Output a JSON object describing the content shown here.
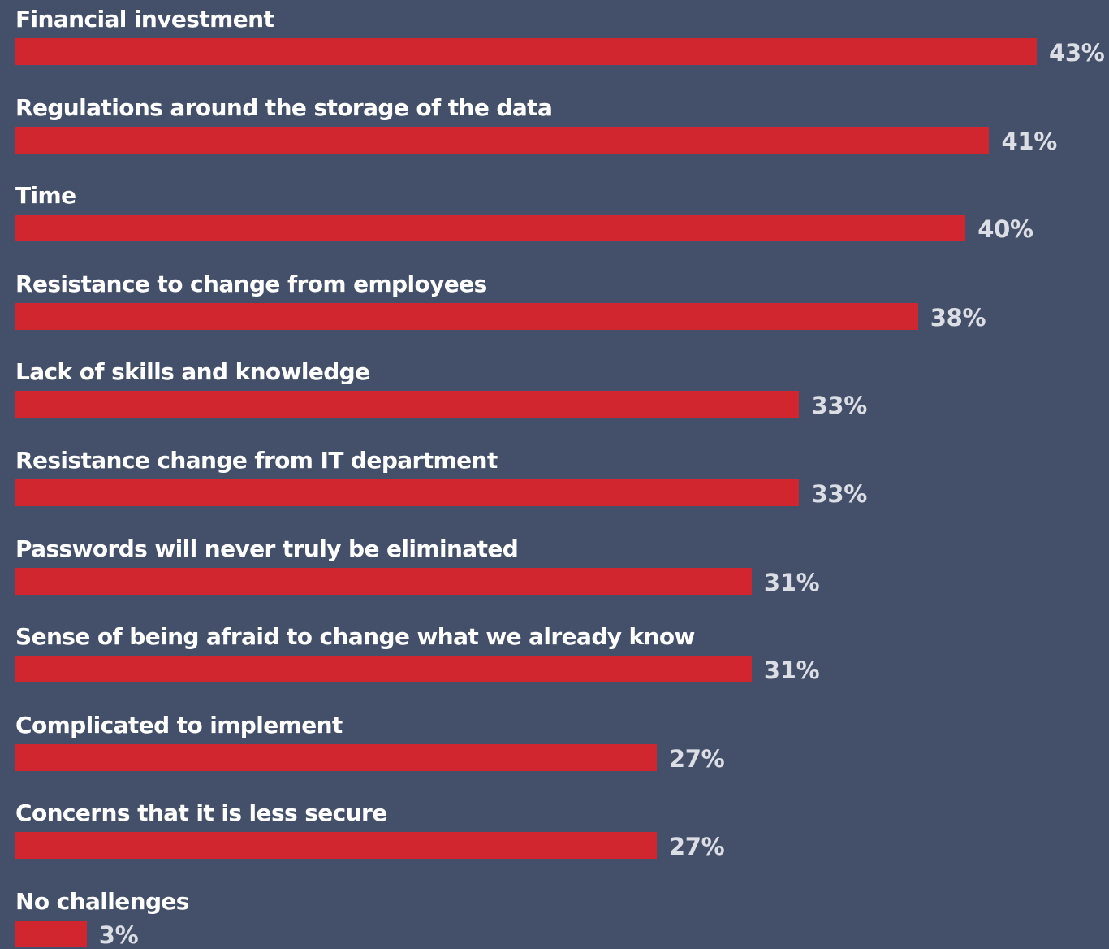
{
  "colors": {
    "background": "#444f69",
    "bar": "#d12630",
    "label": "#ffffff",
    "value_label": "#dcdee6"
  },
  "chart_data": {
    "type": "bar",
    "orientation": "horizontal",
    "value_suffix": "%",
    "categories": [
      "Financial investment",
      "Regulations around the storage of the data",
      "Time",
      "Resistance to change from employees",
      "Lack of skills and knowledge",
      "Resistance change from IT department",
      "Passwords will never truly be eliminated",
      "Sense of being afraid to change what we already know",
      "Complicated to implement",
      "Concerns that it is less secure",
      "No challenges"
    ],
    "values": [
      43,
      41,
      40,
      38,
      33,
      33,
      31,
      31,
      27,
      27,
      3
    ],
    "value_labels": [
      "43%",
      "41%",
      "40%",
      "38%",
      "33%",
      "33%",
      "31%",
      "31%",
      "27%",
      "27%",
      "3%"
    ],
    "xlim": [
      0,
      43
    ]
  }
}
